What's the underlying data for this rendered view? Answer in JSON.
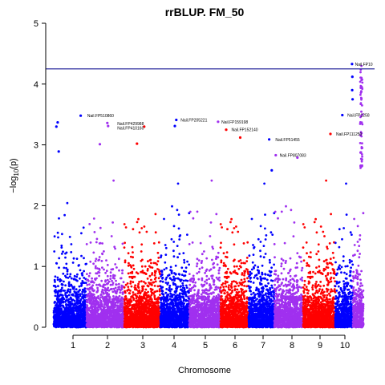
{
  "chart_data": {
    "type": "scatter",
    "title": "rrBLUP. FM_50",
    "xlabel": "Chromosome",
    "ylabel_html": "-log10(p)",
    "ylabel_prefix": "−log",
    "ylabel_sub": "10",
    "ylabel_suffix": "(p)",
    "ylim": [
      0,
      5
    ],
    "yticks": [
      0,
      1,
      2,
      3,
      4,
      5
    ],
    "threshold": 4.25,
    "chromosomes": [
      "1",
      "2",
      "3",
      "4",
      "5",
      "6",
      "7",
      "8",
      "9",
      "10"
    ],
    "chromosome_colors": [
      "#0000ff",
      "#a030ef",
      "#ff0000",
      "#0000ff",
      "#a030ef",
      "#ff0000",
      "#0000ff",
      "#a030ef",
      "#ff0000",
      "#0000ff",
      "#a030ef"
    ],
    "threshold_color": "#00008b",
    "peaks": [
      {
        "chrom": 1,
        "pos": 0.12,
        "value": 3.37
      },
      {
        "chrom": 1,
        "pos": 0.15,
        "value": 2.89
      },
      {
        "chrom": 1,
        "pos": 0.82,
        "value": 3.48
      },
      {
        "chrom": 1,
        "pos": 0.08,
        "value": 3.3
      },
      {
        "chrom": 2,
        "pos": 0.55,
        "value": 3.36
      },
      {
        "chrom": 2,
        "pos": 0.57,
        "value": 3.31
      },
      {
        "chrom": 2,
        "pos": 0.35,
        "value": 3.01
      },
      {
        "chrom": 3,
        "pos": 0.35,
        "value": 3.02
      },
      {
        "chrom": 3,
        "pos": 0.55,
        "value": 3.3
      },
      {
        "chrom": 4,
        "pos": 0.55,
        "value": 3.41
      },
      {
        "chrom": 4,
        "pos": 0.5,
        "value": 3.31
      },
      {
        "chrom": 5,
        "pos": 0.92,
        "value": 3.38
      },
      {
        "chrom": 6,
        "pos": 0.2,
        "value": 3.25
      },
      {
        "chrom": 6,
        "pos": 0.7,
        "value": 3.12
      },
      {
        "chrom": 7,
        "pos": 0.8,
        "value": 3.09
      },
      {
        "chrom": 7,
        "pos": 0.9,
        "value": 2.58
      },
      {
        "chrom": 8,
        "pos": 0.05,
        "value": 2.83
      },
      {
        "chrom": 8,
        "pos": 0.8,
        "value": 2.79
      },
      {
        "chrom": 9,
        "pos": 0.85,
        "value": 3.18
      },
      {
        "chrom": 10,
        "pos": 0.4,
        "value": 3.49
      },
      {
        "chrom": 10,
        "pos": 0.95,
        "value": 4.33
      },
      {
        "chrom": 10,
        "pos": 0.97,
        "value": 4.12
      },
      {
        "chrom": 10,
        "pos": 0.96,
        "value": 3.9
      },
      {
        "chrom": 10,
        "pos": 0.98,
        "value": 3.75
      }
    ],
    "annotations": [
      {
        "text": "Nail.FP510860",
        "chrom": 1,
        "pos": 0.95,
        "value": 3.48
      },
      {
        "text": "Nail.FP429988",
        "chrom": 2,
        "pos": 0.75,
        "value": 3.35
      },
      {
        "text": "Nail.FP410160",
        "chrom": 2,
        "pos": 0.75,
        "value": 3.28
      },
      {
        "text": "Nail.FP205221",
        "chrom": 4,
        "pos": 0.62,
        "value": 3.41
      },
      {
        "text": "Nail.FP159198",
        "chrom": 5,
        "pos": 0.95,
        "value": 3.38
      },
      {
        "text": "Nail.FP152140",
        "chrom": 6,
        "pos": 0.3,
        "value": 3.25
      },
      {
        "text": "Nail.FP51455",
        "chrom": 7,
        "pos": 0.95,
        "value": 3.09
      },
      {
        "text": "Nail.FP807083",
        "chrom": 8,
        "pos": 0.1,
        "value": 2.83
      },
      {
        "text": "Nail.FP111250",
        "chrom": 9,
        "pos": 0.95,
        "value": 3.18
      },
      {
        "text": "Nail.FP1258",
        "chrom": 10,
        "pos": 0.55,
        "value": 3.49
      },
      {
        "text": "Nail.FP10",
        "chrom": 10,
        "pos": 0.98,
        "value": 4.33
      }
    ]
  }
}
